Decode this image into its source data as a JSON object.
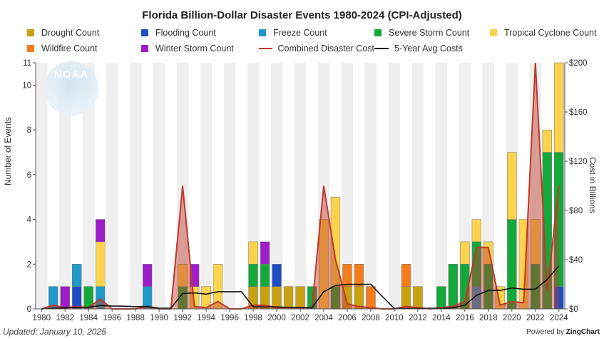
{
  "title": "Florida Billion-Dollar Disaster Events 1980-2024 (CPI-Adjusted)",
  "updated": "Updated: January 10, 2025",
  "powered_by": "Powered by",
  "powered_brand": "ZingChart",
  "logo_text": "NOAA",
  "colors": {
    "drought": "#c9a00f",
    "flooding": "#1c4fc4",
    "freeze": "#1f99c9",
    "severe": "#13a83a",
    "tropical": "#fcd34d",
    "wildfire": "#f47c1b",
    "winter": "#9d1ec9",
    "cost": "#c0392b",
    "avg": "#111111"
  },
  "chart_data": {
    "type": "bar",
    "stacked": true,
    "title": "Florida Billion-Dollar Disaster Events 1980-2024 (CPI-Adjusted)",
    "ylabel": "Number of Events",
    "y2label": "Cost in Billions",
    "ylim": [
      0,
      11
    ],
    "y2lim": [
      0,
      200
    ],
    "yticks": [
      "0",
      "2",
      "4",
      "6",
      "8",
      "10",
      "11"
    ],
    "y2ticks": [
      "$0",
      "$40",
      "$80",
      "$120",
      "$160",
      "$200"
    ],
    "xticks": [
      "1980",
      "1982",
      "1984",
      "1986",
      "1988",
      "1990",
      "1992",
      "1994",
      "1996",
      "1998",
      "2000",
      "2002",
      "2004",
      "2006",
      "2008",
      "2010",
      "2012",
      "2014",
      "2016",
      "2018",
      "2020",
      "2022",
      "2024"
    ],
    "categories": [
      "1980",
      "1981",
      "1982",
      "1983",
      "1984",
      "1985",
      "1986",
      "1987",
      "1988",
      "1989",
      "1990",
      "1991",
      "1992",
      "1993",
      "1994",
      "1995",
      "1996",
      "1997",
      "1998",
      "1999",
      "2000",
      "2001",
      "2002",
      "2003",
      "2004",
      "2005",
      "2006",
      "2007",
      "2008",
      "2009",
      "2010",
      "2011",
      "2012",
      "2013",
      "2014",
      "2015",
      "2016",
      "2017",
      "2018",
      "2019",
      "2020",
      "2021",
      "2022",
      "2023",
      "2024"
    ],
    "series": [
      {
        "name": "Drought Count",
        "key": "drought",
        "values": [
          0,
          0,
          0,
          0,
          0,
          0,
          0,
          0,
          0,
          0,
          0,
          0,
          0,
          0,
          0,
          0,
          0,
          0,
          1,
          1,
          1,
          1,
          1,
          0,
          0,
          0,
          1,
          1,
          0,
          0,
          0,
          1,
          1,
          0,
          0,
          0,
          0,
          0,
          0,
          0,
          0,
          0,
          0,
          0,
          0
        ]
      },
      {
        "name": "Flooding Count",
        "key": "flooding",
        "values": [
          0,
          0,
          0,
          1,
          0,
          0,
          0,
          0,
          0,
          0,
          0,
          0,
          0,
          0,
          0,
          0,
          0,
          0,
          0,
          0,
          1,
          0,
          0,
          0,
          0,
          0,
          0,
          0,
          0,
          0,
          0,
          0,
          0,
          0,
          0,
          0,
          0,
          0,
          0,
          0,
          0,
          0,
          0,
          0,
          1
        ]
      },
      {
        "name": "Freeze Count",
        "key": "freeze",
        "values": [
          0,
          1,
          0,
          1,
          0,
          1,
          0,
          0,
          0,
          1,
          0,
          0,
          0,
          0,
          0,
          0,
          0,
          0,
          0,
          0,
          0,
          0,
          0,
          0,
          0,
          0,
          0,
          0,
          0,
          0,
          0,
          0,
          0,
          0,
          0,
          0,
          0,
          1,
          0,
          0,
          0,
          0,
          0,
          0,
          0
        ]
      },
      {
        "name": "Severe Storm Count",
        "key": "severe",
        "values": [
          0,
          0,
          0,
          0,
          1,
          0,
          0,
          0,
          0,
          0,
          0,
          0,
          1,
          0,
          0,
          0,
          0,
          0,
          1,
          1,
          0,
          0,
          0,
          1,
          0,
          1,
          0,
          0,
          0,
          0,
          0,
          0,
          0,
          0,
          1,
          2,
          2,
          2,
          2,
          0,
          4,
          0,
          2,
          7,
          6
        ]
      },
      {
        "name": "Tropical Cyclone Count",
        "key": "tropical",
        "values": [
          0,
          0,
          0,
          0,
          0,
          2,
          0,
          0,
          0,
          0,
          0,
          0,
          1,
          1,
          1,
          2,
          0,
          0,
          1,
          0,
          0,
          0,
          0,
          0,
          4,
          4,
          0,
          0,
          0,
          0,
          0,
          0,
          0,
          0,
          0,
          0,
          1,
          1,
          1,
          1,
          3,
          4,
          2,
          1,
          4
        ]
      },
      {
        "name": "Wildfire Count",
        "key": "wildfire",
        "values": [
          0,
          0,
          0,
          0,
          0,
          0,
          0,
          0,
          0,
          0,
          0,
          0,
          0,
          0,
          0,
          0,
          0,
          0,
          0,
          0,
          0,
          0,
          0,
          0,
          0,
          0,
          1,
          1,
          1,
          0,
          0,
          1,
          0,
          0,
          0,
          0,
          0,
          0,
          0,
          0,
          0,
          0,
          0,
          0,
          0
        ]
      },
      {
        "name": "Winter Storm Count",
        "key": "winter",
        "values": [
          0,
          0,
          1,
          0,
          0,
          1,
          0,
          0,
          0,
          1,
          0,
          0,
          0,
          1,
          0,
          0,
          0,
          0,
          0,
          1,
          0,
          0,
          0,
          0,
          0,
          0,
          0,
          0,
          0,
          0,
          0,
          0,
          0,
          0,
          0,
          0,
          0,
          0,
          0,
          0,
          0,
          0,
          0,
          0,
          0
        ]
      }
    ],
    "lines": [
      {
        "name": "Combined Disaster Cost",
        "key": "cost",
        "axis": "y2",
        "values": [
          0,
          3,
          1,
          2,
          1,
          8,
          0,
          0,
          0,
          2,
          0,
          0,
          100,
          2,
          1,
          6,
          0,
          0,
          3,
          3,
          1,
          1,
          1,
          1,
          100,
          40,
          4,
          2,
          1,
          0,
          0,
          2,
          1,
          0,
          1,
          2,
          6,
          50,
          50,
          3,
          6,
          5,
          200,
          15,
          100
        ]
      },
      {
        "name": "5-Year Avg Costs",
        "key": "avg",
        "axis": "y2",
        "values": [
          0,
          0.6,
          0.9,
          1.2,
          1.4,
          2.8,
          2.4,
          2.2,
          1.8,
          2.0,
          0.5,
          0.5,
          12.5,
          13,
          12,
          14,
          14,
          14,
          1.8,
          1.6,
          1.6,
          1.2,
          1.0,
          0.9,
          14,
          19,
          20,
          20,
          20,
          10,
          0.4,
          0.3,
          0.3,
          0.5,
          0.4,
          1,
          3,
          11,
          15,
          15,
          17,
          16,
          16,
          24,
          35
        ]
      }
    ]
  },
  "legend": [
    {
      "label": "Drought Count",
      "key": "drought",
      "type": "box"
    },
    {
      "label": "Flooding Count",
      "key": "flooding",
      "type": "box"
    },
    {
      "label": "Freeze Count",
      "key": "freeze",
      "type": "box"
    },
    {
      "label": "Severe Storm Count",
      "key": "severe",
      "type": "box"
    },
    {
      "label": "Tropical Cyclone Count",
      "key": "tropical",
      "type": "box"
    },
    {
      "label": "Wildfire Count",
      "key": "wildfire",
      "type": "box"
    },
    {
      "label": "Winter Storm Count",
      "key": "winter",
      "type": "box"
    },
    {
      "label": "Combined Disaster Cost",
      "key": "cost",
      "type": "line"
    },
    {
      "label": "5-Year Avg Costs",
      "key": "avg",
      "type": "line"
    }
  ]
}
